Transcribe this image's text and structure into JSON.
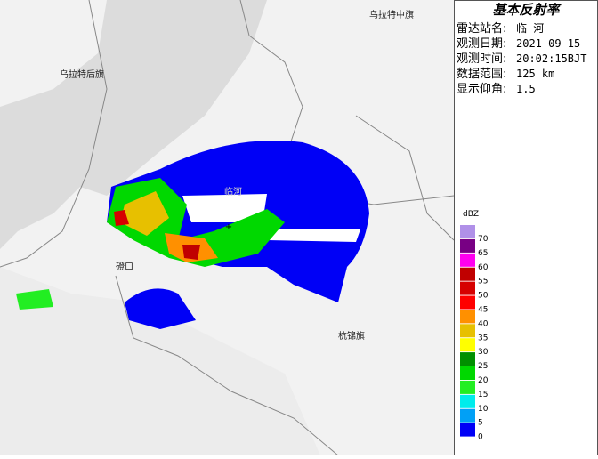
{
  "map": {
    "labels": [
      "乌拉特中旗",
      "乌拉特后旗",
      "临河",
      "磴口",
      "杭锦旗"
    ]
  },
  "panel": {
    "title": "基本反射率",
    "fields": [
      {
        "label": "雷达站名:",
        "value": "临 河"
      },
      {
        "label": "观测日期:",
        "value": "2021-09-15"
      },
      {
        "label": "观测时间:",
        "value": "20:02:15BJT"
      },
      {
        "label": "数据范围:",
        "value": "125 km"
      },
      {
        "label": "显示仰角:",
        "value": "1.5"
      }
    ]
  },
  "legend": {
    "unit": "dBZ",
    "levels": [
      {
        "value": 70,
        "color": "#b090e8"
      },
      {
        "value": 65,
        "color": "#780084"
      },
      {
        "value": 60,
        "color": "#ff00f0"
      },
      {
        "value": 55,
        "color": "#c00000"
      },
      {
        "value": 50,
        "color": "#d60000"
      },
      {
        "value": 45,
        "color": "#ff0000"
      },
      {
        "value": 40,
        "color": "#ff9000"
      },
      {
        "value": 35,
        "color": "#e7c000"
      },
      {
        "value": 30,
        "color": "#ffff00"
      },
      {
        "value": 25,
        "color": "#019000"
      },
      {
        "value": 20,
        "color": "#00d800"
      },
      {
        "value": 15,
        "color": "#22ee22"
      },
      {
        "value": 10,
        "color": "#00ecec"
      },
      {
        "value": 5,
        "color": "#01a0f6"
      },
      {
        "value": 0,
        "color": "#0000f6"
      }
    ]
  }
}
